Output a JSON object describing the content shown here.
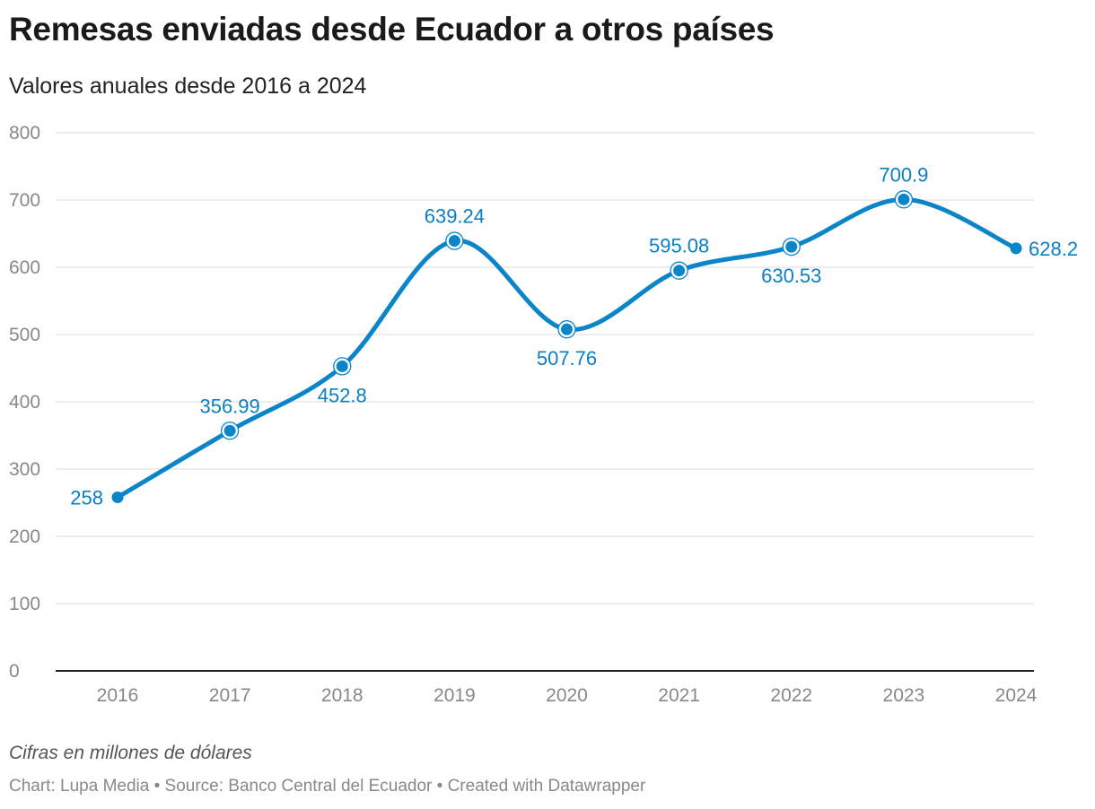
{
  "chart_data": {
    "type": "line",
    "title": "Remesas enviadas desde Ecuador a otros países",
    "subtitle": "Valores anuales desde 2016 a 2024",
    "x": [
      "2016",
      "2017",
      "2018",
      "2019",
      "2020",
      "2021",
      "2022",
      "2023",
      "2024"
    ],
    "values": [
      258,
      356.99,
      452.8,
      639.24,
      507.76,
      595.08,
      630.53,
      700.9,
      628.2
    ],
    "data_labels": [
      "258",
      "356.99",
      "452.8",
      "639.24",
      "507.76",
      "595.08",
      "630.53",
      "700.9",
      "628.2"
    ],
    "yticks": [
      0,
      100,
      200,
      300,
      400,
      500,
      600,
      700,
      800
    ],
    "ylim": [
      0,
      800
    ],
    "grid": true,
    "line_color": "#0a85c9",
    "note": "Cifras en millones de dólares",
    "footer": "Chart: Lupa Media • Source: Banco Central del Ecuador • Created with Datawrapper"
  }
}
